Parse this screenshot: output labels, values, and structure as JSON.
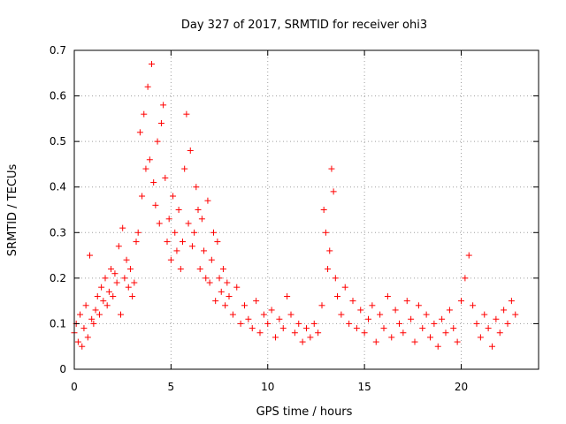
{
  "chart_data": {
    "type": "scatter",
    "title": "Day 327 of 2017, SRMTID for receiver ohi3",
    "xlabel": "GPS time / hours",
    "ylabel": "SRMTID / TECUs",
    "xlim": [
      0,
      24
    ],
    "ylim": [
      0,
      0.7
    ],
    "x_ticks": [
      0,
      5,
      10,
      15,
      20
    ],
    "x_tick_labels": [
      "0",
      "5",
      "10",
      "15",
      "20"
    ],
    "y_ticks": [
      0,
      0.1,
      0.2,
      0.3,
      0.4,
      0.5,
      0.6,
      0.7
    ],
    "y_tick_labels": [
      "0",
      "0.1",
      "0.2",
      "0.3",
      "0.4",
      "0.5",
      "0.6",
      "0.7"
    ],
    "grid": true,
    "marker": "+",
    "marker_color": "#ff0000",
    "series": [
      {
        "name": "SRMTID",
        "x": [
          0.0,
          0.1,
          0.2,
          0.3,
          0.4,
          0.5,
          0.6,
          0.7,
          0.8,
          0.9,
          1.0,
          1.1,
          1.2,
          1.3,
          1.4,
          1.5,
          1.6,
          1.7,
          1.8,
          1.9,
          2.0,
          2.1,
          2.2,
          2.3,
          2.4,
          2.5,
          2.6,
          2.7,
          2.8,
          2.9,
          3.0,
          3.1,
          3.2,
          3.3,
          3.4,
          3.5,
          3.6,
          3.7,
          3.8,
          3.9,
          4.0,
          4.1,
          4.2,
          4.3,
          4.4,
          4.5,
          4.6,
          4.7,
          4.8,
          4.9,
          5.0,
          5.1,
          5.2,
          5.3,
          5.4,
          5.5,
          5.6,
          5.7,
          5.8,
          5.9,
          6.0,
          6.1,
          6.2,
          6.3,
          6.4,
          6.5,
          6.6,
          6.7,
          6.8,
          6.9,
          7.0,
          7.1,
          7.2,
          7.3,
          7.4,
          7.5,
          7.6,
          7.7,
          7.8,
          7.9,
          8.0,
          8.2,
          8.4,
          8.6,
          8.8,
          9.0,
          9.2,
          9.4,
          9.6,
          9.8,
          10.0,
          10.2,
          10.4,
          10.6,
          10.8,
          11.0,
          11.2,
          11.4,
          11.6,
          11.8,
          12.0,
          12.2,
          12.4,
          12.6,
          12.8,
          12.9,
          13.0,
          13.1,
          13.2,
          13.3,
          13.4,
          13.5,
          13.6,
          13.8,
          14.0,
          14.2,
          14.4,
          14.6,
          14.8,
          15.0,
          15.2,
          15.4,
          15.6,
          15.8,
          16.0,
          16.2,
          16.4,
          16.6,
          16.8,
          17.0,
          17.2,
          17.4,
          17.6,
          17.8,
          18.0,
          18.2,
          18.4,
          18.6,
          18.8,
          19.0,
          19.2,
          19.4,
          19.6,
          19.8,
          20.0,
          20.2,
          20.4,
          20.6,
          20.8,
          21.0,
          21.2,
          21.4,
          21.6,
          21.8,
          22.0,
          22.2,
          22.4,
          22.6,
          22.8
        ],
        "y": [
          0.08,
          0.1,
          0.06,
          0.12,
          0.05,
          0.09,
          0.14,
          0.07,
          0.25,
          0.11,
          0.1,
          0.13,
          0.16,
          0.12,
          0.18,
          0.15,
          0.2,
          0.14,
          0.17,
          0.22,
          0.16,
          0.21,
          0.19,
          0.27,
          0.12,
          0.31,
          0.2,
          0.24,
          0.18,
          0.22,
          0.16,
          0.19,
          0.28,
          0.3,
          0.52,
          0.38,
          0.56,
          0.44,
          0.62,
          0.46,
          0.67,
          0.41,
          0.36,
          0.5,
          0.32,
          0.54,
          0.58,
          0.42,
          0.28,
          0.33,
          0.24,
          0.38,
          0.3,
          0.26,
          0.35,
          0.22,
          0.28,
          0.44,
          0.56,
          0.32,
          0.48,
          0.27,
          0.3,
          0.4,
          0.35,
          0.22,
          0.33,
          0.26,
          0.2,
          0.37,
          0.19,
          0.24,
          0.3,
          0.15,
          0.28,
          0.2,
          0.17,
          0.22,
          0.14,
          0.19,
          0.16,
          0.12,
          0.18,
          0.1,
          0.14,
          0.11,
          0.09,
          0.15,
          0.08,
          0.12,
          0.1,
          0.13,
          0.07,
          0.11,
          0.09,
          0.16,
          0.12,
          0.08,
          0.1,
          0.06,
          0.09,
          0.07,
          0.1,
          0.08,
          0.14,
          0.35,
          0.3,
          0.22,
          0.26,
          0.44,
          0.39,
          0.2,
          0.16,
          0.12,
          0.18,
          0.1,
          0.15,
          0.09,
          0.13,
          0.08,
          0.11,
          0.14,
          0.06,
          0.12,
          0.09,
          0.16,
          0.07,
          0.13,
          0.1,
          0.08,
          0.15,
          0.11,
          0.06,
          0.14,
          0.09,
          0.12,
          0.07,
          0.1,
          0.05,
          0.11,
          0.08,
          0.13,
          0.09,
          0.06,
          0.15,
          0.2,
          0.25,
          0.14,
          0.1,
          0.07,
          0.12,
          0.09,
          0.05,
          0.11,
          0.08,
          0.13,
          0.1,
          0.15,
          0.12
        ]
      }
    ]
  }
}
